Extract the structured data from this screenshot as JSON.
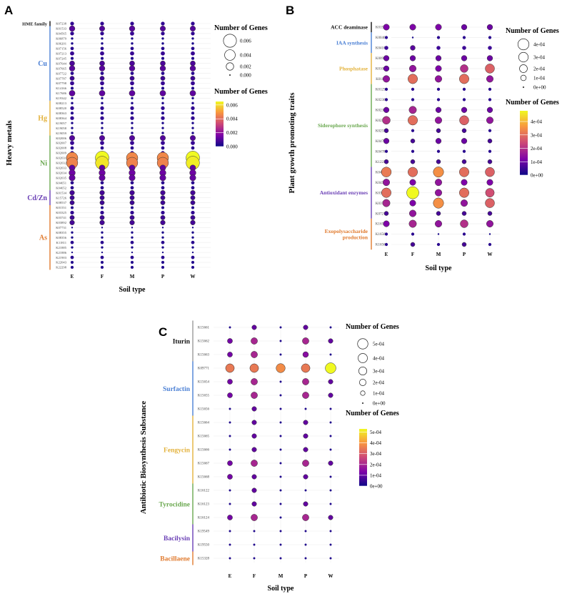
{
  "chart_data": [
    {
      "type": "scatter",
      "panel": "A",
      "ylabel": "Heavy metals",
      "xlabel": "Soil type",
      "categories": [
        "E",
        "F",
        "M",
        "P",
        "W"
      ],
      "legend_title_size": "Number of Genes",
      "legend_title_color": "Number of Genes",
      "size_ticks": [
        "0.006",
        "0.004",
        "0.002",
        "0.000"
      ],
      "size_tick_values": [
        0.006,
        0.004,
        0.002,
        0.0
      ],
      "color_ticks": [
        "0.006",
        "0.004",
        "0.002",
        "0.000"
      ],
      "color_tick_values": [
        0.006,
        0.004,
        0.002,
        0.0
      ],
      "vmax": 0.0065,
      "groups": [
        {
          "label": "HME family",
          "color": "#111111",
          "start": 0,
          "end": 0
        },
        {
          "label": "Cu",
          "color": "#4a7fd4",
          "start": 1,
          "end": 15
        },
        {
          "label": "Hg",
          "color": "#e3b23c",
          "start": 16,
          "end": 22
        },
        {
          "label": "Ni",
          "color": "#6aa84f",
          "start": 23,
          "end": 33
        },
        {
          "label": "Cd/Zn",
          "color": "#6a3fb5",
          "start": 34,
          "end": 36
        },
        {
          "label": "As",
          "color": "#e07a2e",
          "start": 37,
          "end": 49
        }
      ],
      "genes": [
        "K07238",
        "K01533",
        "K04565",
        "K06879",
        "K06201",
        "K07156",
        "K07213",
        "K07245",
        "K07644",
        "K07665",
        "K07722",
        "K07787",
        "K07798",
        "K14166",
        "K17686",
        "K19342",
        "K08213",
        "K08520",
        "K08363",
        "K08364",
        "K19057",
        "K19058",
        "K19059",
        "K02006",
        "K02007",
        "K02008",
        "K02009",
        "K02031",
        "K02032",
        "K02033",
        "K02034",
        "K02035",
        "K04651",
        "K04652",
        "K01534",
        "K15726",
        "K08537",
        "K01551",
        "K03325",
        "K03741",
        "K03892",
        "K07731",
        "K08355",
        "K08356",
        "K11811",
        "K21885",
        "K21886",
        "K21903",
        "K22043",
        "K22298"
      ],
      "values": [
        [
          0.0005,
          0.0005,
          0.0005,
          0.0005,
          0.0005
        ],
        [
          0.0011,
          0.001,
          0.0011,
          0.001,
          0.001
        ],
        [
          0.0005,
          0.0005,
          0.0006,
          0.0005,
          0.0005
        ],
        [
          0.0002,
          0.0002,
          0.0002,
          0.0002,
          0.0002
        ],
        [
          0.0002,
          0.0002,
          0.0002,
          0.0002,
          0.0002
        ],
        [
          0.0004,
          0.0004,
          0.0004,
          0.0004,
          0.0004
        ],
        [
          0.0006,
          0.0006,
          0.0006,
          0.0006,
          0.0006
        ],
        [
          0.0003,
          0.0003,
          0.0003,
          0.0003,
          0.0003
        ],
        [
          0.0009,
          0.0009,
          0.0009,
          0.0009,
          0.0009
        ],
        [
          0.0011,
          0.0011,
          0.0011,
          0.0011,
          0.0011
        ],
        [
          0.0004,
          0.0004,
          0.0004,
          0.0004,
          0.0004
        ],
        [
          0.0007,
          0.0007,
          0.0007,
          0.0007,
          0.0007
        ],
        [
          0.0006,
          0.0006,
          0.0006,
          0.0006,
          0.0006
        ],
        [
          0.0003,
          0.0003,
          0.0003,
          0.0003,
          0.0003
        ],
        [
          0.0012,
          0.0012,
          0.0012,
          0.0012,
          0.0012
        ],
        [
          0.0002,
          0.0002,
          0.0002,
          0.0002,
          0.0002
        ],
        [
          0.0002,
          0.0002,
          0.0002,
          0.0002,
          0.0002
        ],
        [
          0.0005,
          0.0005,
          0.0005,
          0.0005,
          0.0005
        ],
        [
          0.0003,
          0.0003,
          0.0003,
          0.0003,
          0.0003
        ],
        [
          0.0005,
          0.0005,
          0.0005,
          0.0005,
          0.0005
        ],
        [
          0.0002,
          0.0002,
          0.0002,
          0.0002,
          0.0002
        ],
        [
          0.0002,
          0.0002,
          0.0002,
          0.0002,
          0.0002
        ],
        [
          0.0002,
          0.0002,
          0.0002,
          0.0002,
          0.0002
        ],
        [
          0.001,
          0.001,
          0.001,
          0.001,
          0.001
        ],
        [
          0.0006,
          0.0006,
          0.0006,
          0.0006,
          0.0006
        ],
        [
          0.0004,
          0.0004,
          0.0004,
          0.0004,
          0.0004
        ],
        [
          0.0005,
          0.0005,
          0.0005,
          0.0005,
          0.0005
        ],
        [
          0.0046,
          0.0065,
          0.0046,
          0.0046,
          0.0065
        ],
        [
          0.0045,
          0.0062,
          0.0045,
          0.0045,
          0.0063
        ],
        [
          0.0012,
          0.0012,
          0.0012,
          0.0012,
          0.0012
        ],
        [
          0.0014,
          0.0014,
          0.0014,
          0.0014,
          0.0014
        ],
        [
          0.0013,
          0.0013,
          0.0013,
          0.0013,
          0.0013
        ],
        [
          0.0004,
          0.0004,
          0.0004,
          0.0004,
          0.0004
        ],
        [
          0.0004,
          0.0004,
          0.0004,
          0.0004,
          0.0004
        ],
        [
          0.0008,
          0.0008,
          0.0008,
          0.0008,
          0.0008
        ],
        [
          0.0007,
          0.0007,
          0.0007,
          0.0007,
          0.0007
        ],
        [
          0.0007,
          0.0007,
          0.0007,
          0.0007,
          0.0007
        ],
        [
          0.0003,
          0.0003,
          0.0003,
          0.0003,
          0.0003
        ],
        [
          0.0005,
          0.0005,
          0.0005,
          0.0005,
          0.0005
        ],
        [
          0.0007,
          0.0007,
          0.0007,
          0.0007,
          0.0007
        ],
        [
          0.0008,
          0.0008,
          0.0008,
          0.0008,
          0.0008
        ],
        [
          0.0001,
          0.0001,
          0.0001,
          0.0001,
          0.0001
        ],
        [
          0.0002,
          0.0002,
          0.0002,
          0.0002,
          0.0002
        ],
        [
          0.0002,
          0.0002,
          0.0002,
          0.0002,
          0.0002
        ],
        [
          0.0004,
          0.0004,
          0.0004,
          0.0004,
          0.0004
        ],
        [
          0.0002,
          0.0002,
          0.0002,
          0.0002,
          0.0002
        ],
        [
          0.0001,
          0.0001,
          0.0001,
          0.0001,
          0.0001
        ],
        [
          0.0004,
          0.0004,
          0.0004,
          0.0004,
          0.0004
        ],
        [
          0.0003,
          0.0003,
          0.0003,
          0.0003,
          0.0003
        ],
        [
          0.0003,
          0.0003,
          0.0003,
          0.0003,
          0.0003
        ]
      ]
    },
    {
      "type": "scatter",
      "panel": "B",
      "ylabel": "Plant growth promoting traits",
      "xlabel": "Soil type",
      "categories": [
        "E",
        "F",
        "M",
        "P",
        "W"
      ],
      "legend_title_size": "Number of Genes",
      "legend_title_color": "Number of Genes",
      "size_ticks": [
        "4e-04",
        "3e-04",
        "2e-04",
        "1e-04",
        "0e+00"
      ],
      "size_tick_values": [
        0.0004,
        0.0003,
        0.0002,
        0.0001,
        0.0
      ],
      "color_ticks": [
        "4e-04",
        "3e-04",
        "2e-04",
        "1e-04",
        "0e+00"
      ],
      "color_tick_values": [
        0.0004,
        0.0003,
        0.0002,
        0.0001,
        0.0
      ],
      "vmax": 0.00048,
      "groups": [
        {
          "label": "ACC deaminase",
          "color": "#111111",
          "start": 0,
          "end": 0
        },
        {
          "label": "IAA synthesis",
          "color": "#4a7fd4",
          "start": 1,
          "end": 2
        },
        {
          "label": "Phosphatase",
          "color": "#e3b23c",
          "start": 3,
          "end": 5
        },
        {
          "label": "Siderophore synthesis",
          "color": "#6aa84f",
          "start": 6,
          "end": 13
        },
        {
          "label": "Antioxidant enzymes",
          "color": "#6a3fb5",
          "start": 14,
          "end": 18
        },
        {
          "label": "Exopolysaccharide production",
          "color": "#e07a2e",
          "start": 19,
          "end": 21
        }
      ],
      "genes": [
        "K01505",
        "K00466",
        "K04103",
        "K00906",
        "K01077",
        "K01113",
        "K01252",
        "K02362",
        "K02363",
        "K02364",
        "K02552",
        "K04782",
        "K04783",
        "K12239",
        "K04564",
        "K04565",
        "K03781",
        "K03782",
        "K07217",
        "K16566",
        "K16567",
        "K16568"
      ],
      "values": [
        [
          0.00012,
          0.00012,
          0.00012,
          0.0001,
          0.0001
        ],
        [
          3e-05,
          1e-05,
          3e-05,
          3e-05,
          3e-05
        ],
        [
          5e-05,
          8e-05,
          5e-05,
          5e-05,
          5e-05
        ],
        [
          0.0001,
          0.0001,
          0.0001,
          0.0001,
          0.0001
        ],
        [
          0.0001,
          0.00015,
          0.00012,
          0.0002,
          0.00028
        ],
        [
          0.00015,
          0.0003,
          0.00015,
          0.0003,
          0.00015
        ],
        [
          3e-05,
          3e-05,
          3e-05,
          3e-05,
          3e-05
        ],
        [
          3e-05,
          3e-05,
          3e-05,
          3e-05,
          3e-05
        ],
        [
          0.0001,
          0.00018,
          0.0001,
          0.0001,
          0.0001
        ],
        [
          0.0002,
          0.0003,
          0.00015,
          0.00028,
          0.00015
        ],
        [
          6e-05,
          3e-05,
          6e-05,
          6e-05,
          3e-05
        ],
        [
          0.0001,
          6e-05,
          0.0001,
          0.0001,
          6e-05
        ],
        [
          3e-05,
          3e-05,
          3e-05,
          3e-05,
          3e-05
        ],
        [
          6e-05,
          6e-05,
          6e-05,
          6e-05,
          6e-05
        ],
        [
          0.00032,
          0.0003,
          0.00035,
          0.0003,
          0.00028
        ],
        [
          0.00015,
          0.00012,
          0.00015,
          0.00012,
          0.00012
        ],
        [
          0.0003,
          0.00048,
          0.00015,
          0.0003,
          0.00025
        ],
        [
          0.00018,
          0.00012,
          0.00035,
          0.00015,
          0.00028
        ],
        [
          6e-05,
          0.00015,
          6e-05,
          6e-05,
          6e-05
        ],
        [
          0.00012,
          0.00018,
          0.00015,
          0.0002,
          0.00015
        ],
        [
          3e-05,
          3e-05,
          1e-05,
          3e-05,
          1e-05
        ],
        [
          3e-05,
          6e-05,
          3e-05,
          6e-05,
          3e-05
        ]
      ]
    },
    {
      "type": "scatter",
      "panel": "C",
      "ylabel": "Antibiotic Biosynthesis Substance",
      "xlabel": "Soil type",
      "categories": [
        "E",
        "F",
        "M",
        "P",
        "W"
      ],
      "legend_title_size": "Number of Genes",
      "legend_title_color": "Number of Genes",
      "size_ticks": [
        "5e-04",
        "4e-04",
        "3e-04",
        "2e-04",
        "1e-04",
        "0e+00"
      ],
      "size_tick_values": [
        0.0005,
        0.0004,
        0.0003,
        0.0002,
        0.0001,
        0.0
      ],
      "color_ticks": [
        "5e-04",
        "4e-04",
        "3e-04",
        "2e-04",
        "1e-04",
        "0e+00"
      ],
      "color_tick_values": [
        0.0005,
        0.0004,
        0.0003,
        0.0002,
        0.0001,
        0.0
      ],
      "vmax": 0.00053,
      "groups": [
        {
          "label": "Iturin",
          "color": "#999999",
          "start": 0,
          "end": 2
        },
        {
          "label": "Surfactin",
          "color": "#4a7fd4",
          "start": 3,
          "end": 6
        },
        {
          "label": "Fengycin",
          "color": "#e3b23c",
          "start": 7,
          "end": 11
        },
        {
          "label": "Tyrocidine",
          "color": "#6aa84f",
          "start": 12,
          "end": 14
        },
        {
          "label": "Bacilysin",
          "color": "#6a3fb5",
          "start": 15,
          "end": 16
        },
        {
          "label": "Bacillaene",
          "color": "#e07a2e",
          "start": 17,
          "end": 17
        }
      ],
      "genes": [
        "K15661",
        "K15662",
        "K15663",
        "K09771",
        "K15654",
        "K15655",
        "K15656",
        "K15664",
        "K15665",
        "K15666",
        "K15667",
        "K15668",
        "K16122",
        "K16123",
        "K16124",
        "K19549",
        "K19550",
        "K15328"
      ],
      "values": [
        [
          2e-05,
          0.0001,
          2e-05,
          0.0001,
          2e-05
        ],
        [
          0.00012,
          0.0002,
          2e-05,
          0.0002,
          0.0001
        ],
        [
          0.00012,
          0.0002,
          2e-05,
          0.00015,
          2e-05
        ],
        [
          0.00035,
          0.00035,
          0.00038,
          0.00035,
          0.00053
        ],
        [
          0.00012,
          0.0002,
          2e-05,
          0.0002,
          0.0001
        ],
        [
          0.00012,
          0.0002,
          2e-05,
          0.0002,
          0.0001
        ],
        [
          2e-05,
          0.0001,
          2e-05,
          2e-05,
          2e-05
        ],
        [
          2e-05,
          0.0001,
          2e-05,
          0.0001,
          2e-05
        ],
        [
          2e-05,
          0.0001,
          2e-05,
          0.0001,
          2e-05
        ],
        [
          2e-05,
          0.0001,
          2e-05,
          0.0001,
          2e-05
        ],
        [
          0.00012,
          0.0002,
          2e-05,
          0.0002,
          0.0001
        ],
        [
          0.00012,
          0.0001,
          2e-05,
          0.0001,
          2e-05
        ],
        [
          2e-05,
          0.0001,
          2e-05,
          2e-05,
          2e-05
        ],
        [
          2e-05,
          0.0001,
          2e-05,
          0.0001,
          2e-05
        ],
        [
          0.00012,
          0.0002,
          2e-05,
          0.0002,
          0.0001
        ],
        [
          2e-05,
          2e-05,
          2e-05,
          2e-05,
          2e-05
        ],
        [
          2e-05,
          2e-05,
          2e-05,
          2e-05,
          2e-05
        ],
        [
          2e-05,
          2e-05,
          2e-05,
          2e-05,
          2e-05
        ]
      ]
    }
  ]
}
